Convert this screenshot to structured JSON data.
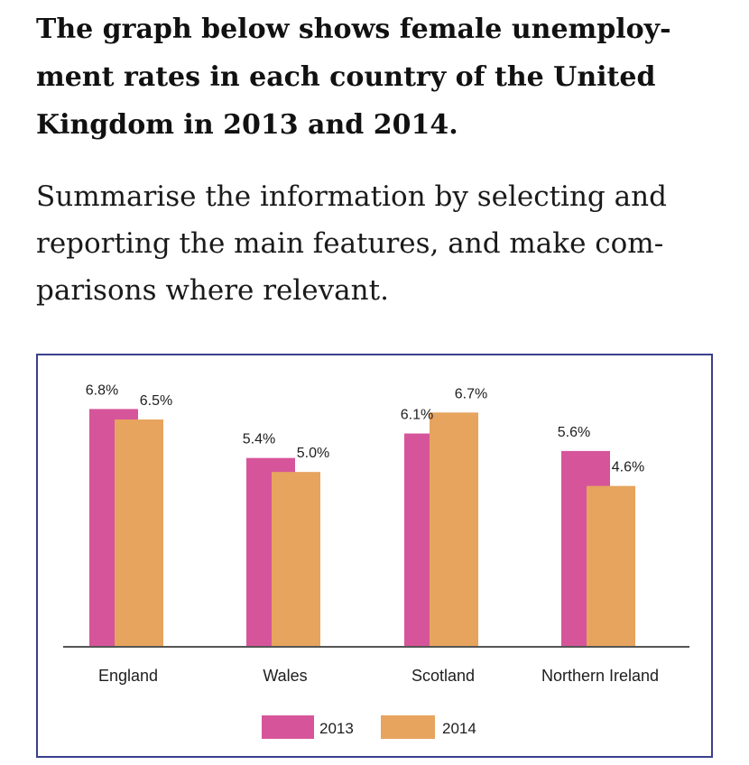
{
  "task": {
    "title_lines": [
      "The graph below shows female unemploy-",
      "ment rates in each country of the United",
      "Kingdom in 2013 and 2014."
    ],
    "instruction_lines": [
      "Summarise the information by selecting and",
      "reporting the main features, and make com-",
      "parisons where relevant."
    ]
  },
  "colors": {
    "2013": "#d6559a",
    "2014": "#e6a45e",
    "frame": "#3b3f8e",
    "axis": "#555555"
  },
  "chart_data": {
    "type": "bar",
    "title": "",
    "xlabel": "",
    "ylabel": "",
    "ylim": [
      0,
      7.3
    ],
    "grid": false,
    "legend_position": "bottom",
    "categories": [
      "England",
      "Wales",
      "Scotland",
      "Northern Ireland"
    ],
    "series": [
      {
        "name": "2013",
        "values": [
          6.8,
          5.4,
          6.1,
          5.6
        ],
        "labels": [
          "6.8%",
          "5.4%",
          "6.1%",
          "5.6%"
        ]
      },
      {
        "name": "2014",
        "values": [
          6.5,
          5.0,
          6.7,
          4.6
        ],
        "labels": [
          "6.5%",
          "5.0%",
          "6.7%",
          "4.6%"
        ]
      }
    ]
  }
}
